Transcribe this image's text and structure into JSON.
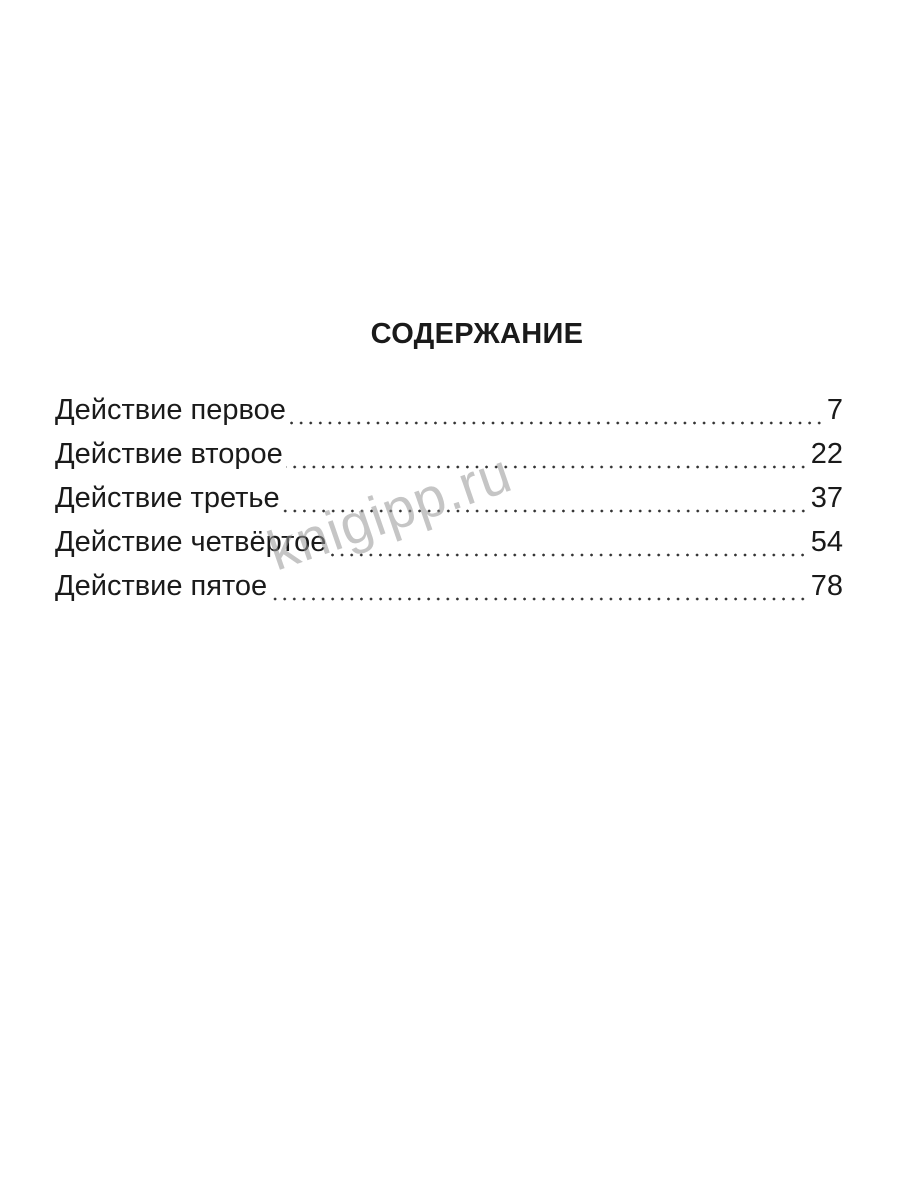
{
  "title": "СОДЕРЖАНИЕ",
  "entries": [
    {
      "label": "Действие первое",
      "page": "7"
    },
    {
      "label": "Действие второе",
      "page": "22"
    },
    {
      "label": "Действие третье",
      "page": "37"
    },
    {
      "label": "Действие четвёртое",
      "page": "54"
    },
    {
      "label": "Действие пятое",
      "page": "78"
    }
  ],
  "watermark": "knigipp.ru"
}
